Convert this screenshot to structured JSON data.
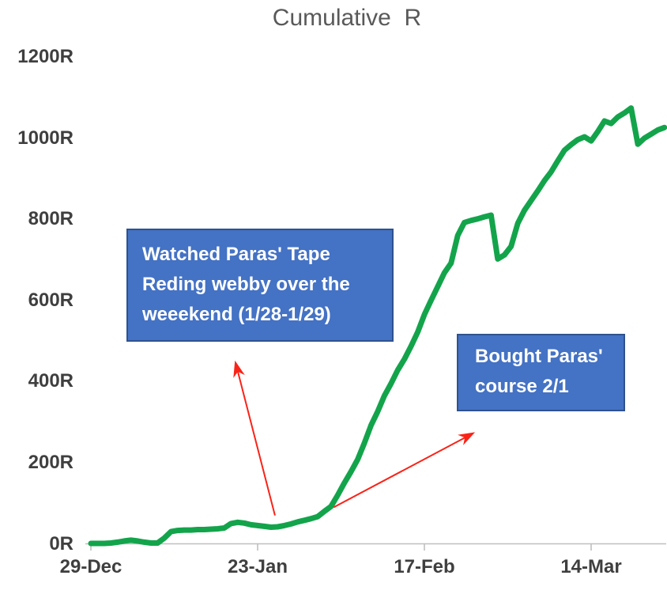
{
  "colors": {
    "line": "#13a44b",
    "annotation_fill": "#4472c4",
    "annotation_border": "#2f528f",
    "annotation_text": "#ffffff",
    "arrow": "#fa2318",
    "axis": "#bfbfbf",
    "tick_text": "#3f3f3f",
    "title_text": "#595959"
  },
  "chart_data": {
    "type": "line",
    "title": "Cumulative R",
    "title_display": "Cumulative  R",
    "grid": false,
    "legend": false,
    "x_axis": {
      "unit": "date",
      "tick_labels": [
        "29-Dec",
        "23-Jan",
        "17-Feb",
        "14-Mar"
      ],
      "tick_days": [
        0,
        25,
        50,
        75
      ]
    },
    "y_axis": {
      "tick_labels": [
        "0R",
        "200R",
        "400R",
        "600R",
        "800R",
        "1000R",
        "1200R"
      ],
      "tick_values": [
        0,
        200,
        400,
        600,
        800,
        1000,
        1200
      ],
      "range": [
        0,
        1200
      ]
    },
    "series": [
      {
        "name": "Cumulative R",
        "start_date": "29-Dec",
        "cadence": "daily",
        "values": [
          1,
          1,
          1,
          2,
          4,
          7,
          9,
          7,
          4,
          2,
          2,
          14,
          30,
          33,
          34,
          34,
          35,
          35,
          36,
          37,
          39,
          50,
          53,
          51,
          47,
          45,
          43,
          41,
          42,
          45,
          49,
          54,
          58,
          62,
          67,
          80,
          92,
          120,
          150,
          178,
          208,
          248,
          292,
          326,
          365,
          395,
          428,
          455,
          487,
          522,
          565,
          600,
          634,
          668,
          692,
          760,
          792,
          797,
          801,
          806,
          810,
          702,
          712,
          733,
          790,
          822,
          846,
          870,
          895,
          917,
          944,
          970,
          984,
          996,
          1003,
          993,
          1016,
          1042,
          1036,
          1052,
          1062,
          1074,
          985,
          1000,
          1010,
          1020,
          1026
        ]
      }
    ],
    "annotations": [
      {
        "id": "webby",
        "lines": [
          "Watched Paras' Tape",
          "Reding webby over the",
          "weeekend (1/28-1/29)"
        ],
        "arrow": {
          "from_day": 27.6,
          "from_value": 70,
          "to_day": 21.6,
          "to_value": 452
        }
      },
      {
        "id": "course",
        "lines": [
          "Bought Paras'",
          "course 2/1"
        ],
        "arrow": {
          "from_day": 36.4,
          "from_value": 90,
          "to_day": 57.6,
          "to_value": 275
        }
      }
    ]
  }
}
